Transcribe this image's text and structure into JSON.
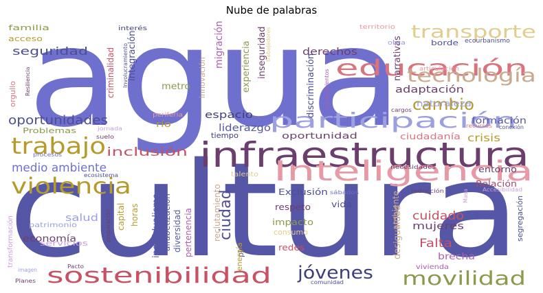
{
  "chart_data": {
    "type": "wordcloud",
    "title": "Nube de palabras",
    "words": [
      {
        "text": "agua",
        "color": "#6f6fce"
      },
      {
        "text": "cultura",
        "color": "#5656a6"
      },
      {
        "text": "infraestructura",
        "color": "#6b3e6e"
      },
      {
        "text": "participación",
        "color": "#9c9fe0"
      },
      {
        "text": "Inteligencia",
        "color": "#e79aa5"
      },
      {
        "text": "educación",
        "color": "#d9747f"
      },
      {
        "text": "transporte",
        "color": "#e1cd8f"
      },
      {
        "text": "tecnología",
        "color": "#c9a98d"
      },
      {
        "text": "sostenibilidad",
        "color": "#c85163"
      },
      {
        "text": "violencia",
        "color": "#b59b2c"
      },
      {
        "text": "trabajo",
        "color": "#b59b2c"
      },
      {
        "text": "movilidad",
        "color": "#8b9a4d"
      },
      {
        "text": "jóvenes",
        "color": "#3e3e7c"
      },
      {
        "text": "cambio",
        "color": "#b59b2c"
      },
      {
        "text": "ciudad",
        "color": "#4d4d94"
      },
      {
        "text": "oportunidades",
        "color": "#4d4d94"
      },
      {
        "text": "medio ambiente",
        "color": "#6f6fce"
      },
      {
        "text": "inclusión",
        "color": "#c85163"
      },
      {
        "text": "seguridad",
        "color": "#4d4d94"
      },
      {
        "text": "adaptación",
        "color": "#6b3e6e"
      },
      {
        "text": "derechos",
        "color": "#6b3e6e"
      },
      {
        "text": "cuidado",
        "color": "#c85163"
      },
      {
        "text": "Falta",
        "color": "#c85163"
      },
      {
        "text": "salud",
        "color": "#9c9fe0"
      },
      {
        "text": "economía",
        "color": "#6b3e6e"
      },
      {
        "text": "mujeres",
        "color": "#6b3e6e"
      },
      {
        "text": "crisis",
        "color": "#b59b2c"
      },
      {
        "text": "oportunidad",
        "color": "#6b3e6e"
      },
      {
        "text": "formación",
        "color": "#5656a6"
      },
      {
        "text": "liderazgo",
        "color": "#5656a6"
      },
      {
        "text": "espacio",
        "color": "#3e3e7c"
      },
      {
        "text": "entorno",
        "color": "#6b3e6e"
      },
      {
        "text": "Relación",
        "color": "#9e4d6e"
      },
      {
        "text": "brecha",
        "color": "#ad5fb0"
      },
      {
        "text": "naturaleza",
        "color": "#9c9fe0"
      },
      {
        "text": "ciudadanía",
        "color": "#d9747f"
      },
      {
        "text": "metro",
        "color": "#8b9a4d"
      },
      {
        "text": "integración",
        "color": "#4d4d94"
      },
      {
        "text": "migración",
        "color": "#ad5fb0"
      },
      {
        "text": "experiencia",
        "color": "#8b9a4d"
      },
      {
        "text": "inseguridad",
        "color": "#6b3e6e"
      },
      {
        "text": "discriminación",
        "color": "#4d4d94"
      },
      {
        "text": "narrativas",
        "color": "#6b3e6e"
      },
      {
        "text": "individualismo",
        "color": "#5656a6"
      },
      {
        "text": "alfabetización",
        "color": "#5656a6"
      },
      {
        "text": "diversidad",
        "color": "#5656a6"
      },
      {
        "text": "pertenencia",
        "color": "#ad5fb0"
      },
      {
        "text": "plataformas",
        "color": "#5656a6"
      },
      {
        "text": "energía",
        "color": "#b59b2c"
      },
      {
        "text": "desigualdad",
        "color": "#c9a98d"
      },
      {
        "text": "ambiente",
        "color": "#c9a98d"
      },
      {
        "text": "segregación",
        "color": "#4d4d94"
      },
      {
        "text": "Exclusión",
        "color": "#4d4d94"
      },
      {
        "text": "respeto",
        "color": "#6b3e6e"
      },
      {
        "text": "impacto",
        "color": "#8b9a4d"
      },
      {
        "text": "consumo",
        "color": "#e1cd8f"
      },
      {
        "text": "redes",
        "color": "#c85163"
      },
      {
        "text": "vida",
        "color": "#4d4d94"
      },
      {
        "text": "capital",
        "color": "#b59b2c"
      },
      {
        "text": "horas",
        "color": "#b59b2c"
      },
      {
        "text": "reclutamiento",
        "color": "#c9a98d"
      },
      {
        "text": "tiempo",
        "color": "#3e3e7c"
      },
      {
        "text": "Problemas",
        "color": "#8b9a4d"
      },
      {
        "text": "río",
        "color": "#b59b2c"
      },
      {
        "text": "criminalidad",
        "color": "#c85163"
      },
      {
        "text": "innovación",
        "color": "#c9a98d"
      },
      {
        "text": "orgullo",
        "color": "#d9747f"
      },
      {
        "text": "familia",
        "color": "#8b9a4d"
      },
      {
        "text": "acceso",
        "color": "#b59b2c"
      },
      {
        "text": "servicios",
        "color": "#c9a0dc"
      },
      {
        "text": "patrimonio",
        "color": "#9c9fe0"
      },
      {
        "text": "transformación",
        "color": "#c9a0dc"
      },
      {
        "text": "vivienda",
        "color": "#ad5fb0"
      },
      {
        "text": "borde",
        "color": "#4d4d94"
      },
      {
        "text": "talento",
        "color": "#e1cd8f"
      },
      {
        "text": "interés",
        "color": "#3e3e7c"
      },
      {
        "text": "territorio",
        "color": "#e79aa5"
      },
      {
        "text": "obra",
        "color": "#9c9fe0"
      },
      {
        "text": "ecourbanismo",
        "color": "#4d4d94"
      },
      {
        "text": "articulación",
        "color": "#e79aa5"
      },
      {
        "text": "trabajadores",
        "color": "#e1cd8f"
      },
      {
        "text": "Involucramiento",
        "color": "#4d4d94"
      },
      {
        "text": "Resiliencia",
        "color": "#6b3e6e"
      },
      {
        "text": "equipamientos",
        "color": "#ad5fb0"
      },
      {
        "text": "cargos",
        "color": "#6b3e6e"
      },
      {
        "text": "periferia",
        "color": "#e79aa5"
      },
      {
        "text": "jornada",
        "color": "#c9a0dc"
      },
      {
        "text": "suelo",
        "color": "#6b3e6e"
      },
      {
        "text": "procesos",
        "color": "#6f6fce"
      },
      {
        "text": "ecosistema",
        "color": "#4d4d94"
      },
      {
        "text": "recursos",
        "color": "#d9747f"
      },
      {
        "text": "conexión",
        "color": "#4d4d94"
      },
      {
        "text": "necesidades",
        "color": "#6b3e6e"
      },
      {
        "text": "reducción",
        "color": "#6b3e6e"
      },
      {
        "text": "sábados",
        "color": "#6f6fce"
      },
      {
        "text": "Masa",
        "color": "#c9a0dc"
      },
      {
        "text": "Accesibilidad",
        "color": "#c9a0dc"
      },
      {
        "text": "preparación",
        "color": "#6b3e6e"
      },
      {
        "text": "imagen",
        "color": "#9c9fe0"
      },
      {
        "text": "Pacto",
        "color": "#6b3e6e"
      },
      {
        "text": "Planes",
        "color": "#6b3e6e"
      },
      {
        "text": "comunidad",
        "color": "#4d4d94"
      }
    ]
  }
}
